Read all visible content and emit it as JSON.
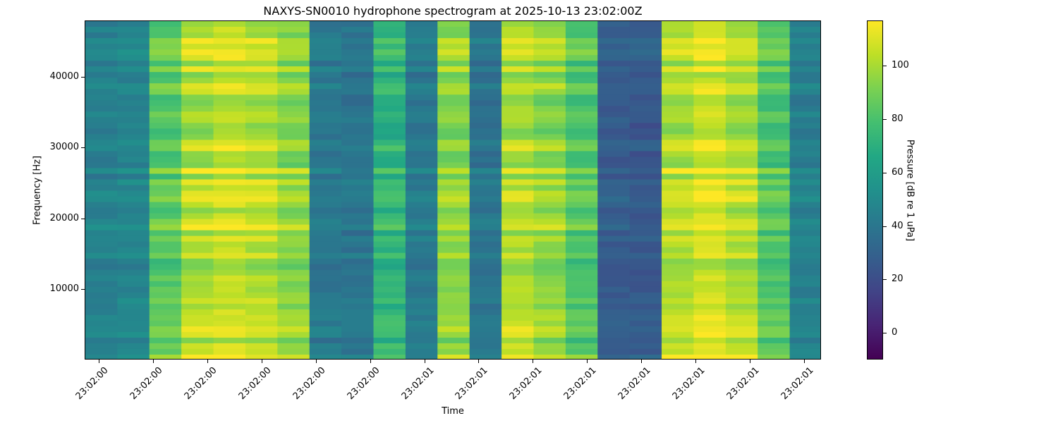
{
  "chart_data": {
    "type": "heatmap",
    "title": "NAXYS-SN0010 hydrophone spectrogram at 2025-10-13 23:02:00Z",
    "xlabel": "Time",
    "ylabel": "Frequency [Hz]",
    "colorbar_label": "Pressure [dB re 1 uPa]",
    "colormap": "viridis",
    "clim": [
      -10,
      117
    ],
    "colorbar_ticks": [
      0,
      20,
      40,
      60,
      80,
      100
    ],
    "ylim": [
      0,
      48000
    ],
    "yticks": [
      10000,
      20000,
      30000,
      40000
    ],
    "xtick_labels": [
      "23:02:00",
      "23:02:00",
      "23:02:00",
      "23:02:00",
      "23:02:00",
      "23:02:00",
      "23:02:01",
      "23:02:01",
      "23:02:01",
      "23:02:01",
      "23:02:01",
      "23:02:01",
      "23:02:01",
      "23:02:01"
    ],
    "time_segments_level_db": [
      46,
      48,
      86,
      104,
      108,
      104,
      96,
      42,
      40,
      74,
      42,
      96,
      40,
      104,
      98,
      84,
      28,
      26,
      104,
      110,
      104,
      84,
      46
    ],
    "band_pattern_note": "horizontal striations visible across frequency"
  }
}
